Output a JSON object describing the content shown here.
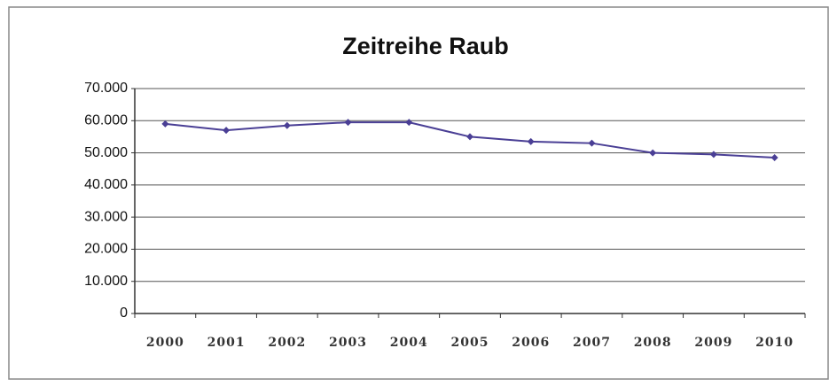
{
  "chart_data": {
    "type": "line",
    "title": "Zeitreihe Raub",
    "categories": [
      "2000",
      "2001",
      "2002",
      "2003",
      "2004",
      "2005",
      "2006",
      "2007",
      "2008",
      "2009",
      "2010"
    ],
    "series": [
      {
        "name": "Raub",
        "color": "#4a3f95",
        "values": [
          59000,
          57000,
          58500,
          59500,
          59500,
          55000,
          53500,
          53000,
          50000,
          49500,
          48500
        ]
      }
    ],
    "ylim": [
      0,
      70000
    ],
    "yticks": [
      0,
      {
        "value": 10000,
        "label": "10.000"
      },
      {
        "value": 20000,
        "label": "20.000"
      },
      {
        "value": 30000,
        "label": "30.000"
      },
      {
        "value": 40000,
        "label": "40.000"
      },
      {
        "value": 50000,
        "label": "50.000"
      },
      {
        "value": 60000,
        "label": "60.000"
      },
      {
        "value": 70000,
        "label": "70.000"
      }
    ],
    "grid": true
  }
}
